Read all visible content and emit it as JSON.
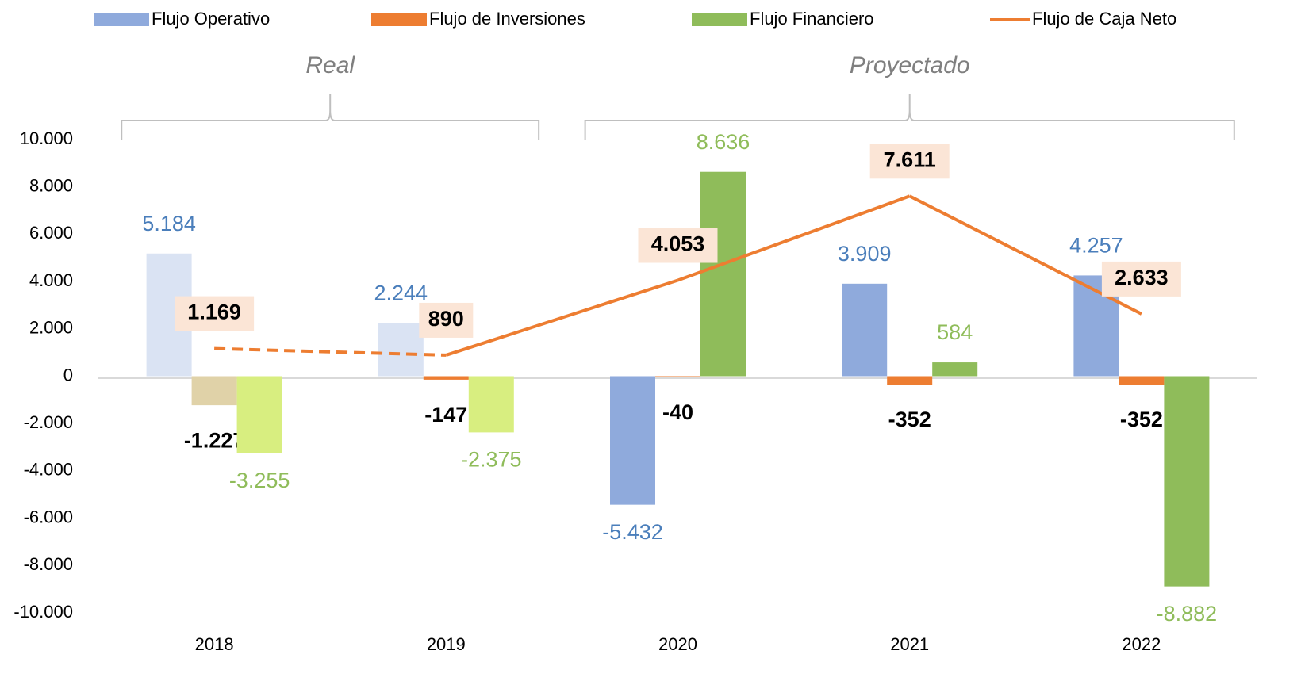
{
  "chart_data": {
    "type": "bar",
    "categories": [
      "2018",
      "2019",
      "2020",
      "2021",
      "2022"
    ],
    "annotations": [
      {
        "text": "Real",
        "from": "2018",
        "to": "2019"
      },
      {
        "text": "Proyectado",
        "from": "2020",
        "to": "2022"
      }
    ],
    "series": [
      {
        "name": "Flujo Operativo",
        "type": "bar",
        "color": "#8faadc",
        "label_color": "#4a7ebb",
        "point_colors": [
          "#dae3f3",
          "#dae3f3",
          "#8faadc",
          "#8faadc",
          "#8faadc"
        ],
        "values": [
          5184,
          2244,
          -5432,
          3909,
          4257
        ],
        "value_labels": [
          "5.184",
          "2.244",
          "-5.432",
          "3.909",
          "4.257"
        ]
      },
      {
        "name": "Flujo de Inversiones",
        "type": "bar",
        "color": "#ed7d31",
        "label_color": "#000000",
        "point_colors": [
          "#e0d2a8",
          "#ed7d31",
          "#ed7d31",
          "#ed7d31",
          "#ed7d31"
        ],
        "values": [
          -1227,
          -147,
          -40,
          -352,
          -352
        ],
        "value_labels": [
          "-1.227",
          "-147",
          "-40",
          "-352",
          "-352"
        ]
      },
      {
        "name": "Flujo Financiero",
        "type": "bar",
        "color": "#8fbc5a",
        "label_color": "#8fbc5a",
        "point_colors": [
          "#d8ee80",
          "#d8ee80",
          "#8fbc5a",
          "#8fbc5a",
          "#8fbc5a"
        ],
        "values": [
          -3255,
          -2375,
          8636,
          584,
          -8882
        ],
        "value_labels": [
          "-3.255",
          "-2.375",
          "8.636",
          "584",
          "-8.882"
        ]
      },
      {
        "name": "Flujo de Caja Neto",
        "type": "line",
        "color": "#ed7d31",
        "label_color": "#000000",
        "label_background": "#fbe5d6",
        "segment_styles": [
          "dashed",
          "solid",
          "solid",
          "solid"
        ],
        "values": [
          1169,
          890,
          4053,
          7611,
          2633
        ],
        "value_labels": [
          "1.169",
          "890",
          "4.053",
          "7.611",
          "2.633"
        ]
      }
    ],
    "ylim": [
      -10000,
      10000
    ],
    "yticks": [
      {
        "value": -10000,
        "label": "-10.000"
      },
      {
        "value": -8000,
        "label": "-8.000"
      },
      {
        "value": -6000,
        "label": "-6.000"
      },
      {
        "value": -4000,
        "label": "-4.000"
      },
      {
        "value": -2000,
        "label": "-2.000"
      },
      0,
      {
        "value": 2000,
        "label": "2.000"
      },
      {
        "value": 4000,
        "label": "4.000"
      },
      {
        "value": 6000,
        "label": "6.000"
      },
      {
        "value": 8000,
        "label": "8.000"
      },
      {
        "value": 10000,
        "label": "10.000"
      }
    ],
    "grid": false,
    "legend": "top"
  }
}
